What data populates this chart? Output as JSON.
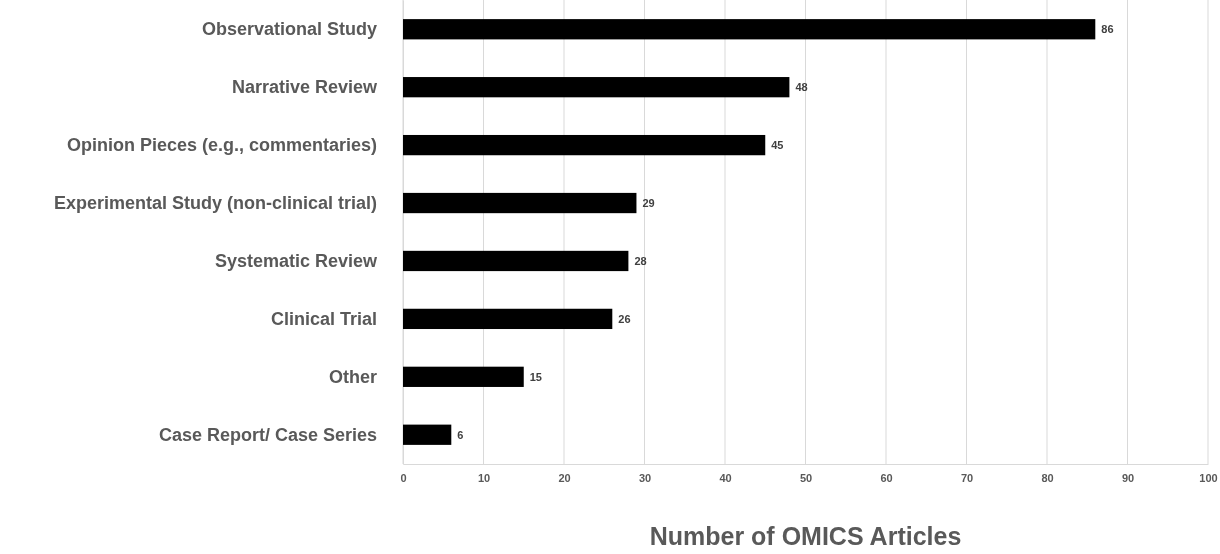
{
  "chart_data": {
    "type": "bar",
    "orientation": "horizontal",
    "xlabel": "Number of OMICS Articles",
    "categories": [
      "Observational Study",
      "Narrative Review",
      "Opinion Pieces (e.g., commentaries)",
      "Experimental Study (non-clinical trial)",
      "Systematic Review",
      "Clinical Trial",
      "Other",
      "Case Report/ Case Series"
    ],
    "values": [
      86,
      48,
      45,
      29,
      28,
      26,
      15,
      6
    ],
    "color": "#000000",
    "xlim": [
      0,
      100
    ],
    "xticks": [
      0,
      10,
      20,
      30,
      40,
      50,
      60,
      70,
      80,
      90,
      100
    ],
    "grid": "x",
    "data_labels": true
  }
}
